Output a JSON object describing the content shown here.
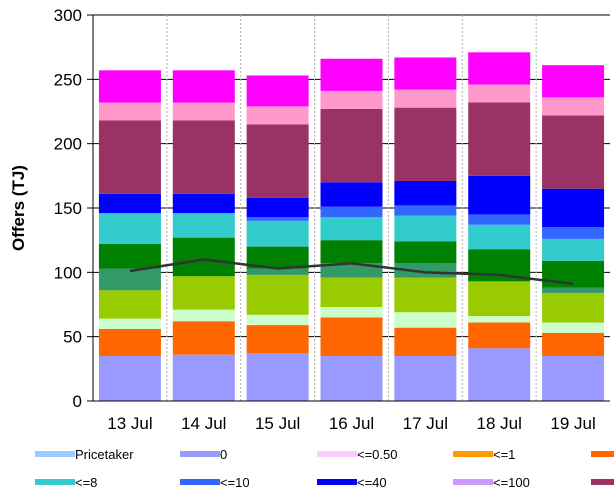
{
  "chart_data": {
    "type": "bar",
    "stacked": true,
    "categories": [
      "13 Jul",
      "14 Jul",
      "15 Jul",
      "16 Jul",
      "17 Jul",
      "18 Jul",
      "19 Jul"
    ],
    "ylabel": "Offers (TJ)",
    "xlabel": "",
    "ylim": [
      0,
      300
    ],
    "yticks": [
      0,
      50,
      100,
      150,
      200,
      250,
      300
    ],
    "grid": "horizontal major, dotted vertical category separators",
    "legend_position": "bottom",
    "series": [
      {
        "name": "Pricetaker",
        "color": "#99ccff",
        "values": [
          0,
          0,
          0,
          0,
          0,
          0,
          0
        ]
      },
      {
        "name": "0",
        "color": "#9999ff",
        "values": [
          35,
          36,
          37,
          35,
          35,
          41,
          35
        ]
      },
      {
        "name": "<=0.50",
        "color": "#ffccff",
        "values": [
          0,
          0,
          0,
          0,
          0,
          0,
          0
        ]
      },
      {
        "name": "<=1",
        "color": "#ff9900",
        "values": [
          0,
          0,
          0,
          0,
          0,
          0,
          0
        ]
      },
      {
        "name": "",
        "color": "#ff6600",
        "values": [
          21,
          26,
          22,
          30,
          22,
          20,
          18
        ]
      },
      {
        "name": "",
        "color": "#ccffcc",
        "values": [
          8,
          9,
          8,
          8,
          12,
          5,
          8
        ]
      },
      {
        "name": "",
        "color": "#99cc00",
        "values": [
          22,
          26,
          31,
          23,
          27,
          27,
          23
        ]
      },
      {
        "name": "",
        "color": "#339966",
        "values": [
          17,
          0,
          5,
          11,
          11,
          0,
          4
        ]
      },
      {
        "name": "",
        "color": "#008000",
        "values": [
          19,
          30,
          17,
          18,
          17,
          25,
          21
        ]
      },
      {
        "name": "<=8",
        "color": "#33cccc",
        "values": [
          24,
          19,
          20,
          18,
          20,
          19,
          17
        ]
      },
      {
        "name": "<=10",
        "color": "#3366ff",
        "values": [
          0,
          0,
          3,
          8,
          8,
          8,
          9
        ]
      },
      {
        "name": "<=40",
        "color": "#0000ff",
        "values": [
          15,
          15,
          15,
          19,
          19,
          30,
          30
        ]
      },
      {
        "name": "<=100",
        "color": "#cc99ff",
        "values": [
          0,
          0,
          0,
          0,
          0,
          0,
          0
        ]
      },
      {
        "name": "",
        "color": "#993366",
        "values": [
          57,
          57,
          57,
          57,
          57,
          57,
          57
        ]
      },
      {
        "name": "",
        "color": "#ff99cc",
        "values": [
          14,
          14,
          14,
          14,
          14,
          14,
          14
        ]
      },
      {
        "name": "",
        "color": "#ff00ff",
        "values": [
          25,
          25,
          24,
          25,
          25,
          25,
          25
        ]
      }
    ],
    "line_series": [
      {
        "name": "",
        "color": "#333333",
        "values": [
          101,
          110,
          103,
          107,
          100,
          98,
          91
        ]
      }
    ],
    "legend": [
      {
        "label": "Pricetaker",
        "color": "#99ccff"
      },
      {
        "label": "0",
        "color": "#9999ff"
      },
      {
        "label": "<=0.50",
        "color": "#ffccff"
      },
      {
        "label": "<=1",
        "color": "#ff9900"
      },
      {
        "label": "",
        "color": "#ff6600"
      },
      {
        "label": "<=8",
        "color": "#33cccc"
      },
      {
        "label": "<=10",
        "color": "#3366ff"
      },
      {
        "label": "<=40",
        "color": "#0000ff"
      },
      {
        "label": "<=100",
        "color": "#cc99ff"
      },
      {
        "label": "",
        "color": "#993366"
      }
    ]
  }
}
